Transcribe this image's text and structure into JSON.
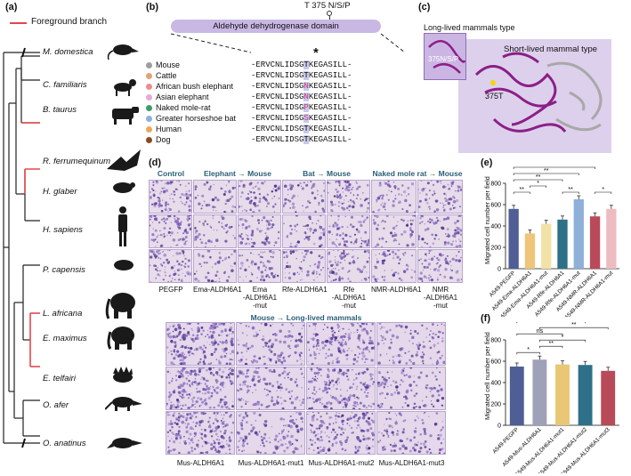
{
  "panel_a": {
    "label": "(a)",
    "legend": "Foreground branch",
    "species": [
      "M. domestica",
      "C. familiaris",
      "B. taurus",
      "R. ferrumequinum",
      "H. glaber",
      "H. sapiens",
      "P. capensis",
      "L. africana",
      "E. maximus",
      "E. telfairi",
      "O. afer",
      "O. anatinus"
    ]
  },
  "panel_b": {
    "label": "(b)",
    "site": "T 375 N/S/P",
    "domain": "Aldehyde dehydrogenase domain",
    "star": "*",
    "rows": [
      {
        "name": "Mouse",
        "color": "#9e9e9e",
        "pre": "-ERVCNLIDSG",
        "aa": "T",
        "post": "KEGASILL-"
      },
      {
        "name": "Cattle",
        "color": "#e0a373",
        "pre": "-ERVCNLIDSG",
        "aa": "T",
        "post": "KEGASILL-"
      },
      {
        "name": "African bush elephant",
        "color": "#ee8c8c",
        "pre": "-ERVCNLIDSG",
        "aa": "N",
        "post": "KEGASILL-"
      },
      {
        "name": "Asian elephant",
        "color": "#e8a8d8",
        "pre": "-ERVCNLIDSG",
        "aa": "N",
        "post": "KEGASILL-"
      },
      {
        "name": "Naked mole-rat",
        "color": "#3d9b6a",
        "pre": "-ERVCNLIDSG",
        "aa": "P",
        "post": "KEGASILL-"
      },
      {
        "name": "Greater horseshoe bat",
        "color": "#8fb0dd",
        "pre": "-ERVCNLIDSG",
        "aa": "S",
        "post": "KEGASILL-"
      },
      {
        "name": "Human",
        "color": "#e9a85c",
        "pre": "-ERVCNLIDSG",
        "aa": "T",
        "post": "KEGASILL-"
      },
      {
        "name": "Dog",
        "color": "#8c4a1f",
        "pre": "-ERVCNLIDSG",
        "aa": "T",
        "post": "KEGASILL-"
      }
    ]
  },
  "panel_c": {
    "label": "(c)",
    "long_title": "Long-lived mammals type",
    "long_site": "375N/S/P",
    "short_title": "Short-lived mammal type",
    "short_site": "375T"
  },
  "panel_d": {
    "label": "(d)",
    "top_groups": [
      "Control",
      "Elephant → Mouse",
      "Bat → Mouse",
      "Naked mole rat → Mouse"
    ],
    "top_columns": [
      "PEGFP",
      "Ema-ALDH6A1",
      "Ema\n-ALDH6A1\n-mut",
      "Rfe-ALDH6A1",
      "Rfe\n-ALDH6A1\n-mut",
      "NMR-ALDH6A1",
      "NMR\n-ALDH6A1\n-mut"
    ],
    "bottom_group": "Mouse → Long-lived mammals",
    "bottom_columns": [
      "Mus-ALDH6A1",
      "Mus-ALDH6A1-mut1",
      "Mus-ALDH6A1-mut2",
      "Mus-ALDH6A1-mut3"
    ]
  },
  "chart_data": [
    {
      "panel": "(e)",
      "type": "bar",
      "ylabel": "Migrated cell number per field",
      "ylim": [
        0,
        800
      ],
      "yticks": [
        0,
        200,
        400,
        600,
        800
      ],
      "categories": [
        "A549-PEGFP",
        "A549-Ema-ALDH6A1",
        "A549-Ema-ALDH6A1-mut",
        "A549-Rfe-ALDH6A1",
        "A549-Rfe-ALDH6A1-mut",
        "A549-NMR-ALDH6A1",
        "A549-NMR-ALDH6A1-mut"
      ],
      "values": [
        560,
        330,
        420,
        460,
        650,
        490,
        560
      ],
      "colors": [
        "#4f5f95",
        "#efc57a",
        "#f2e2a8",
        "#2e7088",
        "#8fb0d8",
        "#b84a5a",
        "#eebcc0"
      ],
      "significance": [
        {
          "from": 0,
          "to": 1,
          "label": "**"
        },
        {
          "from": 1,
          "to": 2,
          "label": "*"
        },
        {
          "from": 0,
          "to": 3,
          "label": "**"
        },
        {
          "from": 3,
          "to": 4,
          "label": "**"
        },
        {
          "from": 0,
          "to": 4,
          "label": "**"
        },
        {
          "from": 5,
          "to": 6,
          "label": "*"
        },
        {
          "from": 0,
          "to": 5,
          "label": "**"
        },
        {
          "from": 0,
          "to": 6,
          "label": "ns"
        }
      ]
    },
    {
      "panel": "(f)",
      "type": "bar",
      "ylabel": "Migrated cell number per field",
      "ylim": [
        0,
        800
      ],
      "yticks": [
        0,
        200,
        400,
        600,
        800
      ],
      "categories": [
        "A549-PEGFP",
        "A549-Mus-ALDH6A1",
        "A549-Mus-ALDH6A1-mut1",
        "A549-Mus-ALDH6A1-mut2",
        "A549-Mus-ALDH6A1-mut3"
      ],
      "values": [
        550,
        615,
        570,
        565,
        510
      ],
      "colors": [
        "#4f5f95",
        "#9ea1b8",
        "#e8c877",
        "#2e7088",
        "#b84a5a"
      ],
      "significance": [
        {
          "from": 0,
          "to": 1,
          "label": "*"
        },
        {
          "from": 1,
          "to": 2,
          "label": "**"
        },
        {
          "from": 1,
          "to": 3,
          "label": "*"
        },
        {
          "from": 0,
          "to": 2,
          "label": "ns"
        },
        {
          "from": 1,
          "to": 4,
          "label": "**"
        },
        {
          "from": 0,
          "to": 3,
          "label": "ns"
        },
        {
          "from": 0,
          "to": 4,
          "label": "*"
        }
      ]
    }
  ]
}
